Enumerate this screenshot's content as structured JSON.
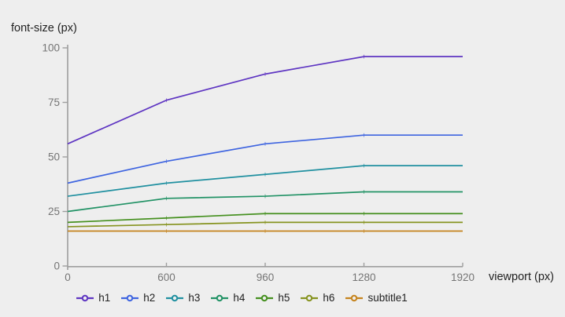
{
  "chart": {
    "background": "#eeeeee",
    "axis_color": "#9e9e9e",
    "tick_label_color": "#757575",
    "text_color": "#212121",
    "y_ticks": [
      0,
      25,
      50,
      75,
      100
    ],
    "x_ticks": [
      0,
      600,
      960,
      1280,
      1920
    ]
  },
  "chart_data": {
    "type": "line",
    "title": "font-size (px)",
    "xlabel": "viewport (px)",
    "ylabel": "font-size (px)",
    "x": [
      0,
      600,
      960,
      1280,
      1920
    ],
    "x_scale": "breakpoints-equally-spaced",
    "ylim": [
      0,
      100
    ],
    "grid": false,
    "legend_position": "bottom",
    "series": [
      {
        "name": "h1",
        "color": "#5e35c2",
        "values": [
          56,
          76,
          88,
          96,
          96
        ]
      },
      {
        "name": "h2",
        "color": "#3e64e0",
        "values": [
          38,
          48,
          56,
          60,
          60
        ]
      },
      {
        "name": "h3",
        "color": "#2090a0",
        "values": [
          32,
          38,
          42,
          46,
          46
        ]
      },
      {
        "name": "h4",
        "color": "#219265",
        "values": [
          25,
          31,
          32,
          34,
          34
        ]
      },
      {
        "name": "h5",
        "color": "#45901f",
        "values": [
          20,
          22,
          24,
          24,
          24
        ]
      },
      {
        "name": "h6",
        "color": "#86931f",
        "values": [
          18,
          19,
          20,
          20,
          20
        ]
      },
      {
        "name": "subtitle1",
        "color": "#c5831c",
        "values": [
          16,
          16,
          16,
          16,
          16
        ]
      }
    ]
  }
}
